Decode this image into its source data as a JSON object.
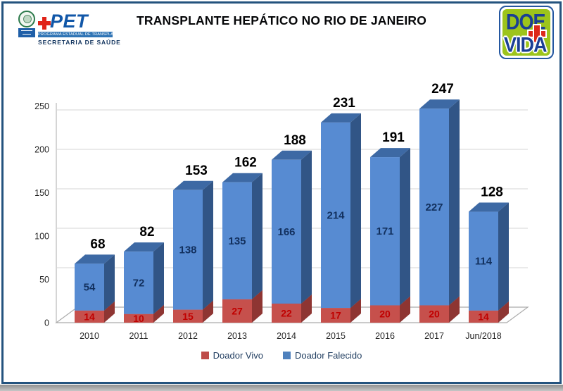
{
  "header": {
    "title": "TRANSPLANTE HEPÁTICO NO RIO DE JANEIRO",
    "pet_logo": {
      "plus": "+",
      "acronym": "PET",
      "program_line": "PROGRAMA ESTADUAL DE TRANSPLANTES",
      "secretariat": "SECRETARIA DE SAÚDE"
    },
    "doevida_logo": {
      "line1": "DOE",
      "line2": "VIDA"
    }
  },
  "chart_data": {
    "type": "bar",
    "stacked": true,
    "effect_3d": true,
    "title": "TRANSPLANTE HEPÁTICO NO RIO DE JANEIRO",
    "categories": [
      "2010",
      "2011",
      "2012",
      "2013",
      "2014",
      "2015",
      "2016",
      "2017",
      "Jun/2018"
    ],
    "series": [
      {
        "name": "Doador Vivo",
        "color": "#BE4B48",
        "values": [
          14,
          10,
          15,
          27,
          22,
          17,
          20,
          20,
          14
        ]
      },
      {
        "name": "Doador Falecido",
        "color": "#4F81BD",
        "values": [
          54,
          72,
          138,
          135,
          166,
          214,
          171,
          227,
          114
        ]
      }
    ],
    "totals": [
      68,
      82,
      153,
      162,
      188,
      231,
      191,
      247,
      128
    ],
    "y_axis": {
      "min": 0,
      "max": 250,
      "step": 50,
      "ticks": [
        0,
        50,
        100,
        150,
        200,
        250
      ]
    },
    "grid": true,
    "legend_position": "bottom",
    "value_label_colors": {
      "vivo": "#C00000",
      "falecido": "#12305E",
      "total": "#000000"
    }
  }
}
